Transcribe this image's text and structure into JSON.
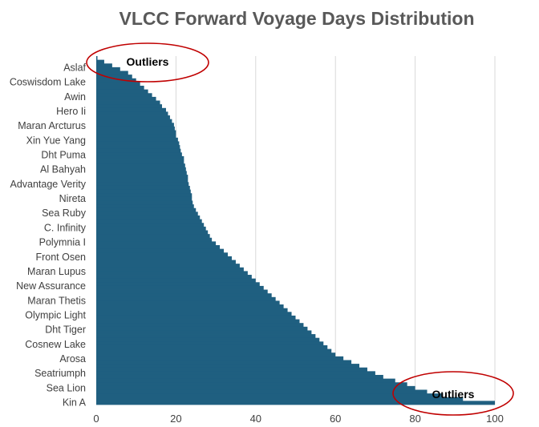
{
  "chart_data": {
    "type": "bar",
    "orientation": "horizontal",
    "title": "VLCC Forward Voyage Days Distribution",
    "xlabel": "",
    "ylabel": "",
    "xlim": [
      0,
      100
    ],
    "x_ticks": [
      0,
      20,
      40,
      60,
      80,
      100
    ],
    "grid": true,
    "bar_color": "#1f5f80",
    "annotation_color": "#c00000",
    "category_labels": [
      "Aslaf",
      "Coswisdom Lake",
      "Awin",
      "Hero Ii",
      "Maran Arcturus",
      "Xin Yue Yang",
      "Dht Puma",
      "Al Bahyah",
      "Advantage Verity",
      "Nireta",
      "Sea Ruby",
      "C. Infinity",
      "Polymnia I",
      "Front Osen",
      "Maran Lupus",
      "New Assurance",
      "Maran Thetis",
      "Olympic Light",
      "Dht Tiger",
      "Cosnew Lake",
      "Arosa",
      "Seatriumph",
      "Sea Lion",
      "Kin A"
    ],
    "values": [
      0.3,
      2,
      4,
      6,
      8,
      9,
      10,
      11,
      12,
      13,
      14,
      15,
      16,
      16.5,
      17.5,
      18,
      18.5,
      19,
      19.5,
      19.7,
      20,
      20,
      20.5,
      20.8,
      21,
      21.2,
      21.5,
      22,
      22,
      22.3,
      22.5,
      22.7,
      23,
      23,
      23.2,
      23.5,
      23.7,
      24,
      24,
      24.2,
      24.5,
      25,
      25.5,
      26,
      26.5,
      27,
      27.5,
      28,
      28.5,
      29,
      30,
      31,
      32,
      33,
      34,
      35,
      36,
      37,
      38,
      39,
      40,
      41,
      42,
      43,
      44,
      45,
      46,
      47,
      48,
      49,
      50,
      51,
      52,
      53,
      54,
      55,
      56,
      57,
      58,
      59,
      60,
      62,
      64,
      66,
      68,
      70,
      72,
      75,
      78,
      80,
      83,
      87,
      92,
      100
    ],
    "annotations": [
      {
        "text": "Outliers",
        "position": "top-left"
      },
      {
        "text": "Outliers",
        "position": "bottom-right"
      }
    ]
  }
}
